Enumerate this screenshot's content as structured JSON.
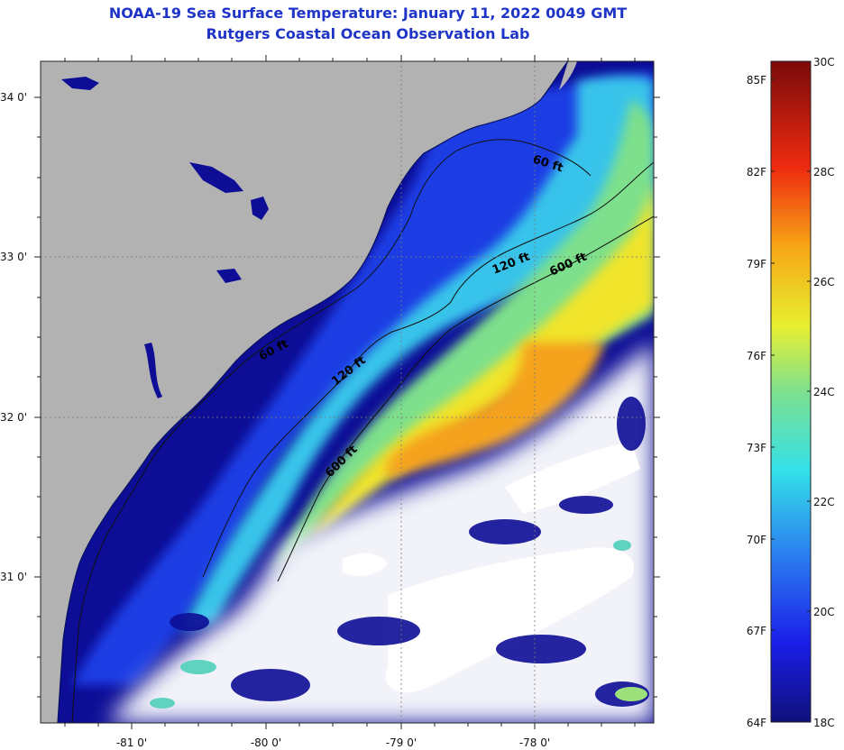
{
  "title": {
    "line1": "NOAA-19 Sea Surface Temperature:  January 11, 2022 0049 GMT",
    "line2": "Rutgers Coastal Ocean Observation Lab"
  },
  "map": {
    "lat_ticks": [
      {
        "value": 34,
        "label": "34 0'"
      },
      {
        "value": 33,
        "label": "33 0'"
      },
      {
        "value": 32,
        "label": "32 0'"
      },
      {
        "value": 31,
        "label": "31 0'"
      }
    ],
    "lon_ticks": [
      {
        "value": -81,
        "label": "-81 0'"
      },
      {
        "value": -80,
        "label": "-80 0'"
      },
      {
        "value": -79,
        "label": "-79 0'"
      },
      {
        "value": -78,
        "label": "-78 0'"
      }
    ],
    "contour_labels": [
      "60 ft",
      "60 ft",
      "120 ft",
      "120 ft",
      "600 ft",
      "600 ft"
    ],
    "colors": {
      "land": "#b2b2b2",
      "cloud": "#ffffff",
      "deep_navy": "#0d0d96",
      "blue": "#1b2fe0",
      "cyan": "#39c7e8",
      "green": "#7ee08f",
      "yellow": "#f2e526",
      "orange": "#f5a21a"
    }
  },
  "colorbar": {
    "f_labels": [
      "85F",
      "82F",
      "79F",
      "76F",
      "73F",
      "70F",
      "67F",
      "64F"
    ],
    "c_labels": [
      "30C",
      "28C",
      "26C",
      "24C",
      "22C",
      "20C",
      "18C"
    ],
    "range_c": [
      18,
      30
    ],
    "range_f": [
      64,
      86
    ]
  }
}
